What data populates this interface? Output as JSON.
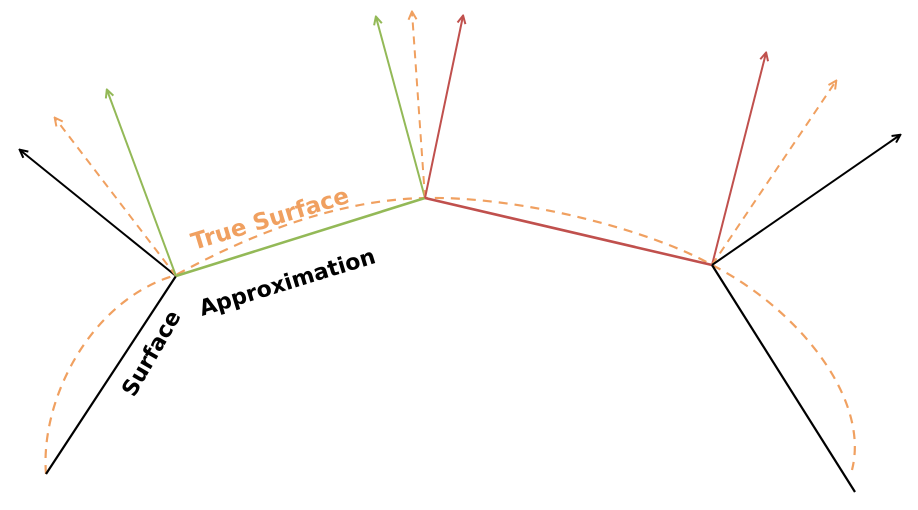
{
  "labels": {
    "true_surface": "True Surface",
    "approximation_word1": "Surface",
    "approximation_word2": "Approximation"
  },
  "colors": {
    "true_surface": "#f0a060",
    "segment_black": "#000000",
    "segment_green": "#93b957",
    "segment_red": "#c0504d"
  }
}
